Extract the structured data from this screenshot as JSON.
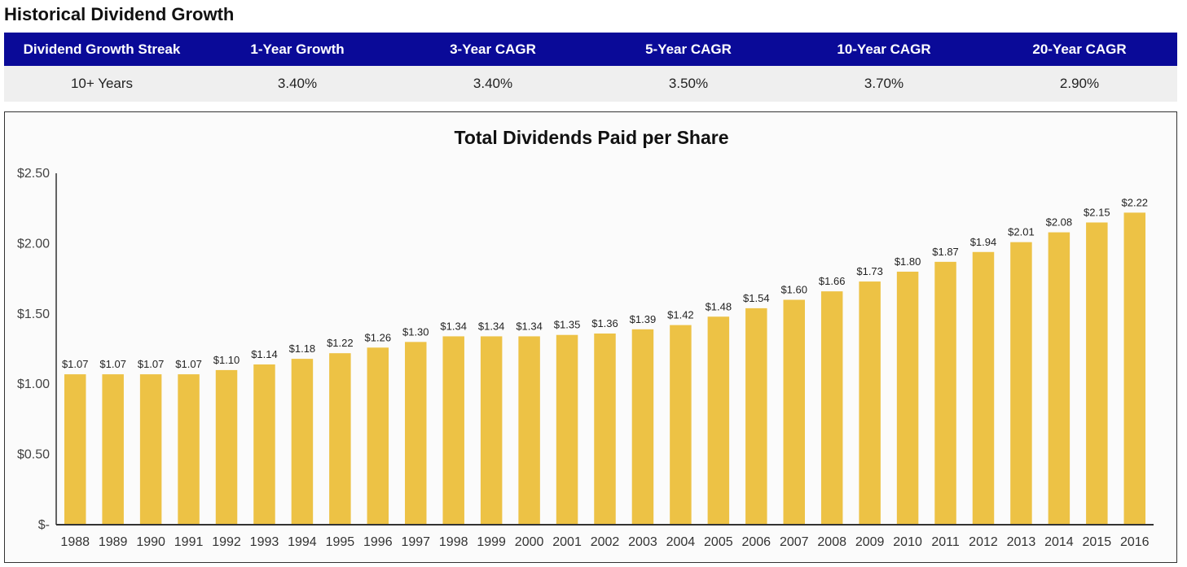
{
  "section_title": "Historical Dividend Growth",
  "stats": {
    "headers": [
      "Dividend Growth Streak",
      "1-Year Growth",
      "3-Year CAGR",
      "5-Year CAGR",
      "10-Year CAGR",
      "20-Year CAGR"
    ],
    "values": [
      "10+ Years",
      "3.40%",
      "3.40%",
      "3.50%",
      "3.70%",
      "2.90%"
    ],
    "header_bg": "#0a0a98",
    "row_bg": "#efefef"
  },
  "chart_data": {
    "type": "bar",
    "title": "Total Dividends Paid per Share",
    "xlabel": "",
    "ylabel": "",
    "ylim": [
      0,
      2.5
    ],
    "grid": false,
    "bar_color": "#edc245",
    "yticks": [
      0,
      0.5,
      1.0,
      1.5,
      2.0,
      2.5
    ],
    "ytick_labels": [
      "$-",
      "$0.50",
      "$1.00",
      "$1.50",
      "$2.00",
      "$2.50"
    ],
    "categories": [
      "1988",
      "1989",
      "1990",
      "1991",
      "1992",
      "1993",
      "1994",
      "1995",
      "1996",
      "1997",
      "1998",
      "1999",
      "2000",
      "2001",
      "2002",
      "2003",
      "2004",
      "2005",
      "2006",
      "2007",
      "2008",
      "2009",
      "2010",
      "2011",
      "2012",
      "2013",
      "2014",
      "2015",
      "2016"
    ],
    "values": [
      1.07,
      1.07,
      1.07,
      1.07,
      1.1,
      1.14,
      1.18,
      1.22,
      1.26,
      1.3,
      1.34,
      1.34,
      1.34,
      1.35,
      1.36,
      1.39,
      1.42,
      1.48,
      1.54,
      1.6,
      1.66,
      1.73,
      1.8,
      1.87,
      1.94,
      2.01,
      2.08,
      2.15,
      2.22
    ],
    "data_labels": [
      "$1.07",
      "$1.07",
      "$1.07",
      "$1.07",
      "$1.10",
      "$1.14",
      "$1.18",
      "$1.22",
      "$1.26",
      "$1.30",
      "$1.34",
      "$1.34",
      "$1.34",
      "$1.35",
      "$1.36",
      "$1.39",
      "$1.42",
      "$1.48",
      "$1.54",
      "$1.60",
      "$1.66",
      "$1.73",
      "$1.80",
      "$1.87",
      "$1.94",
      "$2.01",
      "$2.08",
      "$2.15",
      "$2.22"
    ]
  }
}
